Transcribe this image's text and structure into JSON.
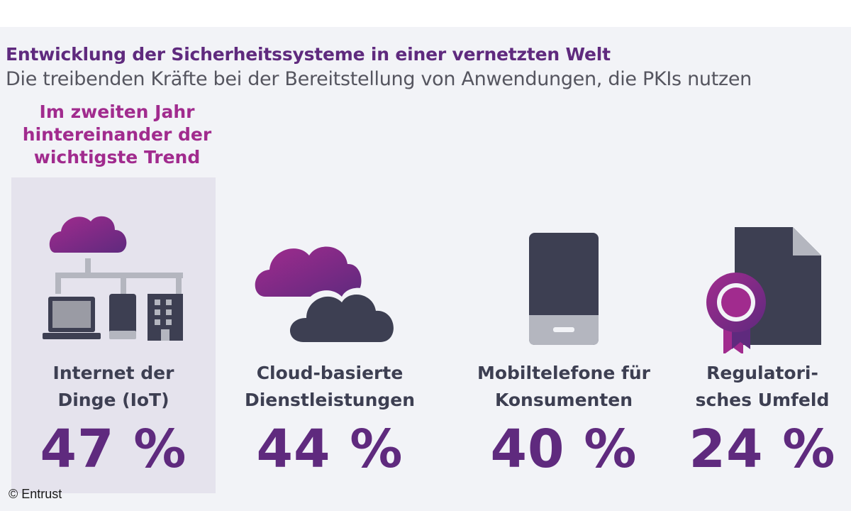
{
  "header": {
    "title": "Entwicklung der Sicherheitssysteme in einer vernetzten Welt",
    "subtitle": "Die treibenden Kräfte bei der Bereitstellung von Anwendungen, die PKIs nutzen"
  },
  "highlight": {
    "text": "Im zweiten Jahr hintereinander der wichtigste Trend"
  },
  "chart_data": {
    "type": "bar",
    "categories": [
      "Internet der Dinge (IoT)",
      "Cloud-basierte Dienstleistungen",
      "Mobiltelefone für Konsumenten",
      "Regulatori-sches Umfeld"
    ],
    "values": [
      47,
      44,
      40,
      24
    ],
    "value_labels": [
      "47 %",
      "44 %",
      "40 %",
      "24 %"
    ],
    "label_lines": [
      [
        "Internet der",
        "Dinge (IoT)"
      ],
      [
        "Cloud-basierte",
        "Dienstleistungen"
      ],
      [
        "Mobiltelefone für",
        "Konsumenten"
      ],
      [
        "Regulatori-",
        "sches Umfeld"
      ]
    ],
    "icons": [
      "iot-network-icon",
      "cloud-services-icon",
      "mobile-phone-icon",
      "regulatory-certificate-icon"
    ]
  },
  "colors": {
    "purple": "#5f2a7e",
    "magenta": "#a12b8e",
    "dark": "#3d3f52",
    "background": "#f2f3f7",
    "highlight_background": "#e5e3ed"
  },
  "credit": "© Entrust"
}
